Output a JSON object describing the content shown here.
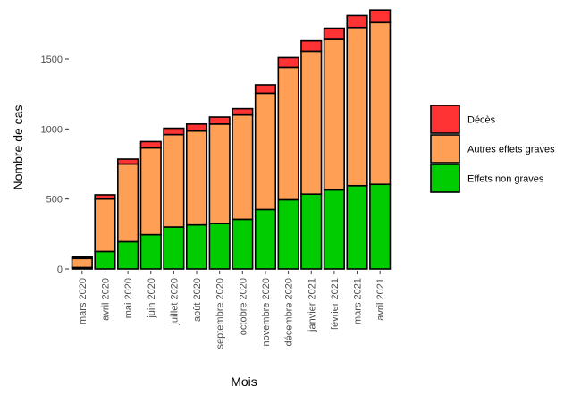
{
  "chart_data": {
    "type": "bar",
    "stacked": true,
    "xlabel": "Mois",
    "ylabel": "Nombre de cas",
    "ylim": [
      0,
      1850
    ],
    "yticks": [
      0,
      500,
      1000,
      1500
    ],
    "grid": false,
    "legend_position": "right",
    "categories": [
      "mars 2020",
      "avril 2020",
      "mai 2020",
      "juin 2020",
      "juillet 2020",
      "août 2020",
      "septembre 2020",
      "octobre 2020",
      "novembre 2020",
      "décembre 2020",
      "janvier 2021",
      "février 2021",
      "mars 2021",
      "avril 2021"
    ],
    "series": [
      {
        "name": "Effets non graves",
        "color": "#00cc00",
        "values": [
          10,
          125,
          195,
          245,
          300,
          315,
          325,
          355,
          425,
          495,
          535,
          565,
          595,
          605
        ]
      },
      {
        "name": "Autres effets graves",
        "color": "#ff9f55",
        "values": [
          65,
          375,
          555,
          620,
          660,
          670,
          710,
          745,
          830,
          945,
          1020,
          1075,
          1130,
          1155
        ]
      },
      {
        "name": "Décès",
        "color": "#ff3333",
        "values": [
          10,
          30,
          35,
          45,
          45,
          50,
          50,
          45,
          60,
          70,
          75,
          80,
          85,
          90
        ]
      }
    ],
    "legend_order": [
      "Décès",
      "Autres effets graves",
      "Effets non graves"
    ]
  }
}
